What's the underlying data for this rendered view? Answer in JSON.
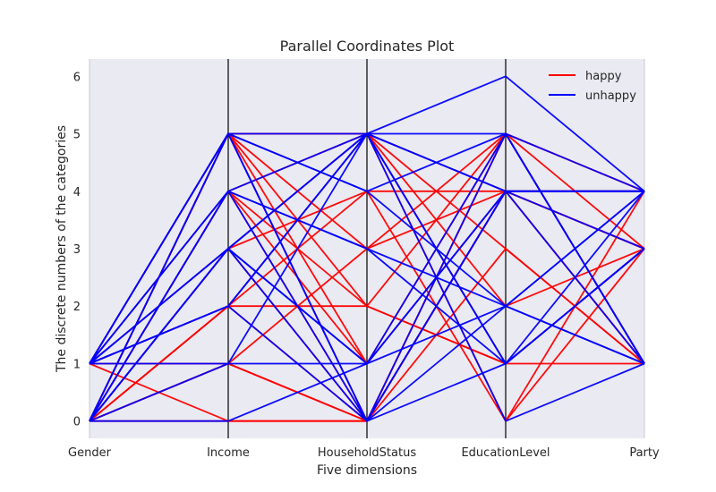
{
  "chart_data": {
    "type": "parallel-coordinates",
    "title": "Parallel Coordinates Plot",
    "xlabel": "Five dimensions",
    "ylabel": "The discrete numbers of the categories",
    "dimensions": [
      "Gender",
      "Income",
      "HouseholdStatus",
      "EducationLevel",
      "Party"
    ],
    "yticks": [
      "0",
      "1",
      "2",
      "3",
      "4",
      "5",
      "6"
    ],
    "ylim": [
      -0.3,
      6.3
    ],
    "grid": false,
    "legend_position": "top-right",
    "series": [
      {
        "name": "happy",
        "color": "#ff0000",
        "lines": [
          [
            0,
            5,
            0,
            4,
            4
          ],
          [
            0,
            5,
            1,
            5,
            3
          ],
          [
            0,
            4,
            0,
            3,
            1
          ],
          [
            0,
            4,
            2,
            1,
            3
          ],
          [
            0,
            3,
            0,
            4,
            1
          ],
          [
            0,
            2,
            5,
            2,
            3
          ],
          [
            0,
            2,
            0,
            4,
            4
          ],
          [
            0,
            1,
            0,
            5,
            1
          ],
          [
            0,
            0,
            0,
            4,
            3
          ],
          [
            1,
            0,
            0,
            4,
            3
          ],
          [
            1,
            1,
            0,
            5,
            4
          ],
          [
            1,
            5,
            5,
            1,
            1
          ],
          [
            1,
            4,
            5,
            0,
            3
          ],
          [
            1,
            3,
            4,
            0,
            4
          ],
          [
            1,
            2,
            4,
            4,
            1
          ],
          [
            0,
            5,
            3,
            4,
            4
          ],
          [
            0,
            4,
            1,
            4,
            3
          ],
          [
            1,
            5,
            2,
            5,
            4
          ],
          [
            0,
            5,
            5,
            3,
            1
          ],
          [
            0,
            2,
            2,
            1,
            3
          ],
          [
            0,
            1,
            3,
            5,
            1
          ],
          [
            0,
            3,
            5,
            4,
            3
          ]
        ]
      },
      {
        "name": "unhappy",
        "color": "#0000ff",
        "lines": [
          [
            1,
            4,
            5,
            5,
            4
          ],
          [
            1,
            3,
            5,
            4,
            4
          ],
          [
            1,
            2,
            5,
            1,
            3
          ],
          [
            1,
            1,
            1,
            4,
            1
          ],
          [
            1,
            5,
            5,
            6,
            4
          ],
          [
            0,
            0,
            1,
            5,
            1
          ],
          [
            0,
            3,
            1,
            2,
            1
          ],
          [
            0,
            3,
            5,
            1,
            3
          ],
          [
            0,
            1,
            5,
            0,
            1
          ],
          [
            1,
            5,
            0,
            4,
            4
          ],
          [
            0,
            4,
            0,
            2,
            4
          ],
          [
            1,
            2,
            5,
            4,
            3
          ],
          [
            0,
            5,
            4,
            2,
            4
          ],
          [
            1,
            3,
            0,
            1,
            3
          ],
          [
            0,
            5,
            0,
            5,
            1
          ],
          [
            1,
            4,
            3,
            2,
            1
          ],
          [
            1,
            2,
            0,
            4,
            4
          ],
          [
            0,
            3,
            1,
            4,
            4
          ],
          [
            1,
            5,
            4,
            5,
            1
          ],
          [
            0,
            4,
            3,
            1,
            4
          ]
        ]
      }
    ]
  }
}
